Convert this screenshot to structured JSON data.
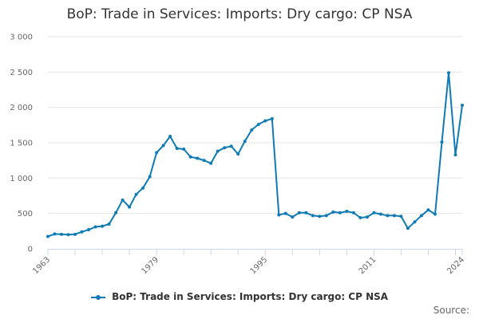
{
  "chart_data": {
    "type": "line",
    "title": "BoP: Trade in Services: Imports: Dry cargo: CP NSA",
    "xlabel": "",
    "ylabel": "",
    "x_tick_labels": [
      "1963",
      "1979",
      "1995",
      "2011",
      "2024"
    ],
    "y_tick_labels": [
      "0",
      "500",
      "1 000",
      "1 500",
      "2 000",
      "2 500",
      "3 000"
    ],
    "xlim": [
      1963,
      2024
    ],
    "ylim": [
      0,
      3000
    ],
    "grid": true,
    "legend_position": "bottom",
    "series": [
      {
        "name": "BoP: Trade in Services: Imports: Dry cargo: CP NSA",
        "color": "#0e7bb5",
        "x": [
          1963,
          1964,
          1965,
          1966,
          1967,
          1968,
          1969,
          1970,
          1971,
          1972,
          1973,
          1974,
          1975,
          1976,
          1977,
          1978,
          1979,
          1980,
          1981,
          1982,
          1983,
          1984,
          1985,
          1986,
          1987,
          1988,
          1989,
          1990,
          1991,
          1992,
          1993,
          1994,
          1995,
          1996,
          1997,
          1998,
          1999,
          2000,
          2001,
          2002,
          2003,
          2004,
          2005,
          2006,
          2007,
          2008,
          2009,
          2010,
          2011,
          2012,
          2013,
          2014,
          2015,
          2016,
          2017,
          2018,
          2019,
          2020,
          2021,
          2022,
          2023,
          2024
        ],
        "values": [
          175,
          210,
          205,
          200,
          205,
          240,
          270,
          310,
          320,
          350,
          510,
          690,
          590,
          770,
          860,
          1020,
          1360,
          1460,
          1590,
          1420,
          1410,
          1300,
          1280,
          1250,
          1210,
          1380,
          1430,
          1450,
          1340,
          1520,
          1680,
          1760,
          1810,
          1840,
          480,
          500,
          450,
          510,
          510,
          470,
          460,
          470,
          520,
          510,
          530,
          510,
          440,
          450,
          510,
          490,
          470,
          470,
          460,
          290,
          380,
          470,
          550,
          490,
          1510,
          2490,
          1330,
          2030
        ]
      }
    ]
  },
  "source_label": "Source:"
}
